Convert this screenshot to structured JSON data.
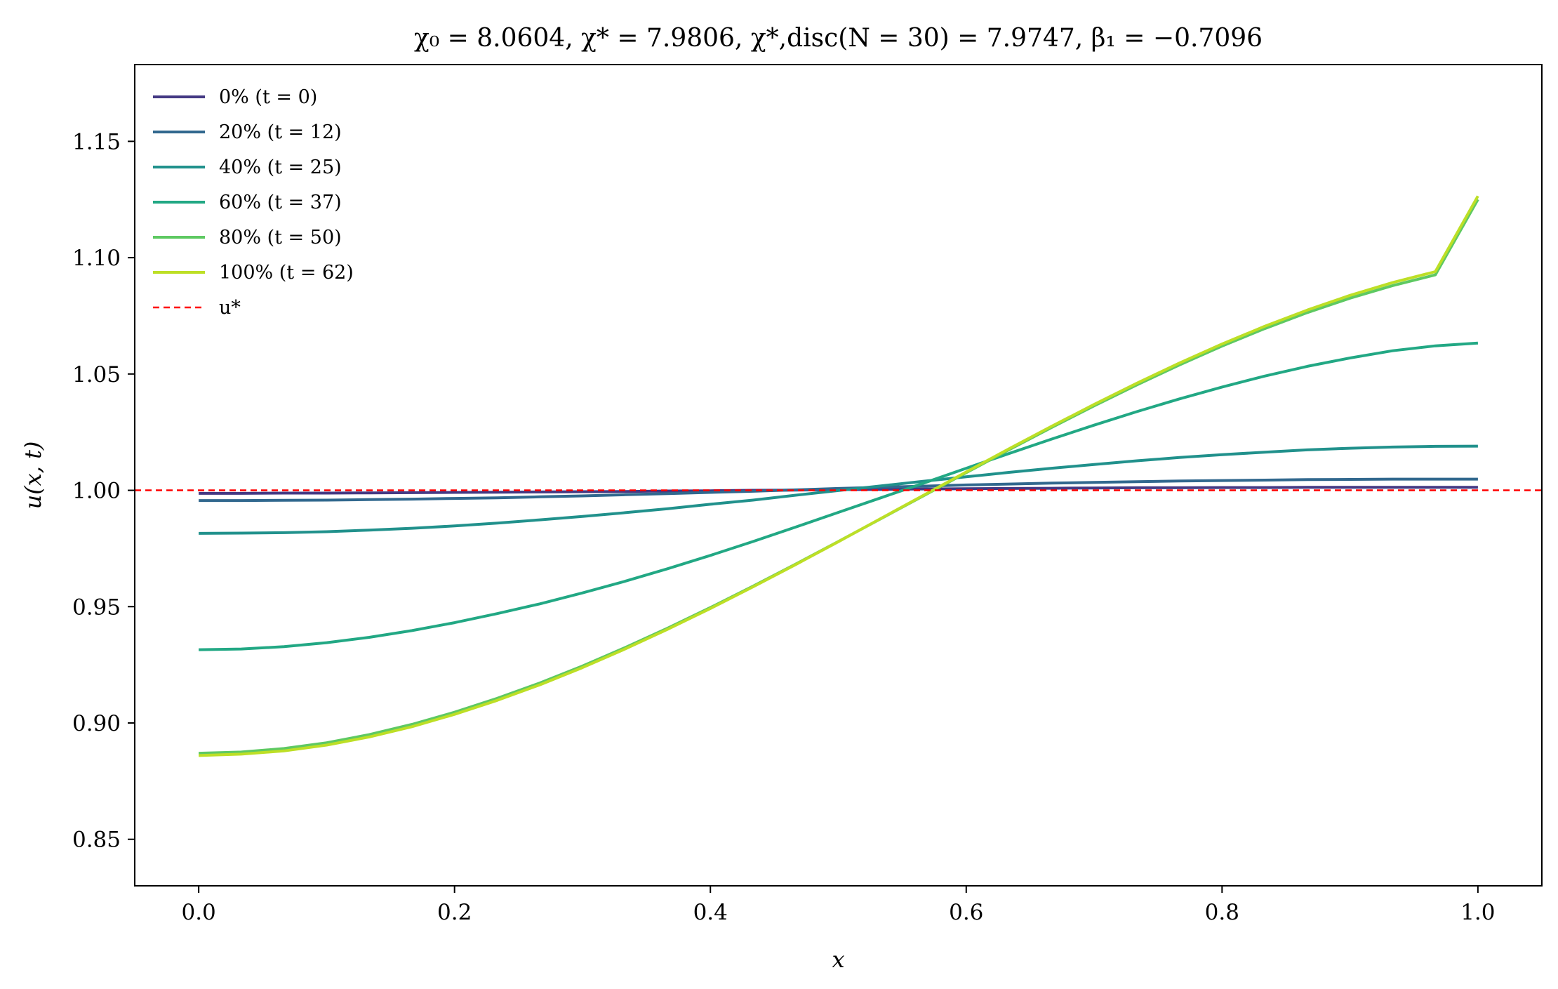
{
  "chart_data": {
    "type": "line",
    "title": "χ₀ = 8.0604,  χ* = 7.9806,  χ*,disc(N = 30) = 7.9747,  β₁ = −0.7096",
    "xlabel": "x",
    "ylabel": "u(x, t)",
    "xlim": [
      -0.05,
      1.05
    ],
    "ylim": [
      0.83,
      1.183
    ],
    "xticks": [
      0.0,
      0.2,
      0.4,
      0.6,
      0.8,
      1.0
    ],
    "xtick_labels": [
      "0.0",
      "0.2",
      "0.4",
      "0.6",
      "0.8",
      "1.0"
    ],
    "yticks": [
      0.85,
      0.9,
      0.95,
      1.0,
      1.05,
      1.1,
      1.15
    ],
    "ytick_labels": [
      "0.85",
      "0.90",
      "0.95",
      "1.00",
      "1.05",
      "1.10",
      "1.15"
    ],
    "grid": false,
    "legend_position": "top-left",
    "x": [
      0.0,
      0.0333,
      0.0667,
      0.1,
      0.1333,
      0.1667,
      0.2,
      0.2333,
      0.2667,
      0.3,
      0.3333,
      0.3667,
      0.4,
      0.4333,
      0.4667,
      0.5,
      0.5333,
      0.5667,
      0.6,
      0.6333,
      0.6667,
      0.7,
      0.7333,
      0.7667,
      0.8,
      0.8333,
      0.8667,
      0.9,
      0.9333,
      0.9667,
      1.0
    ],
    "series": [
      {
        "name": "0% (t = 0)",
        "color": "#443983",
        "values": [
          0.9987,
          0.9987,
          0.9988,
          0.9988,
          0.9989,
          0.999,
          0.9991,
          0.9992,
          0.9993,
          0.9994,
          0.9995,
          0.9997,
          0.9998,
          1.0,
          1.0001,
          1.0003,
          1.0004,
          1.0006,
          1.0007,
          1.0008,
          1.0009,
          1.001,
          1.0011,
          1.0011,
          1.0012,
          1.0012,
          1.0013,
          1.0013,
          1.0013,
          1.0013,
          1.0013
        ]
      },
      {
        "name": "20% (t = 12)",
        "color": "#31688e",
        "values": [
          0.9956,
          0.9956,
          0.9957,
          0.9958,
          0.996,
          0.9962,
          0.9965,
          0.9968,
          0.9972,
          0.9976,
          0.9981,
          0.9986,
          0.9991,
          0.9996,
          1.0002,
          1.0008,
          1.0013,
          1.0018,
          1.0023,
          1.0027,
          1.0031,
          1.0034,
          1.0037,
          1.004,
          1.0042,
          1.0044,
          1.0046,
          1.0047,
          1.0048,
          1.0048,
          1.0048
        ]
      },
      {
        "name": "40% (t = 25)",
        "color": "#21918c",
        "values": [
          0.9815,
          0.9816,
          0.9818,
          0.9822,
          0.9829,
          0.9837,
          0.9847,
          0.9859,
          0.9873,
          0.9888,
          0.9904,
          0.9921,
          0.994,
          0.9958,
          0.9979,
          0.9999,
          1.0019,
          1.0039,
          1.0058,
          1.0077,
          1.0095,
          1.0111,
          1.0127,
          1.0141,
          1.0153,
          1.0164,
          1.0174,
          1.0181,
          1.0186,
          1.0189,
          1.019
        ]
      },
      {
        "name": "60% (t = 37)",
        "color": "#22a884",
        "values": [
          0.9315,
          0.9318,
          0.9328,
          0.9345,
          0.9368,
          0.9397,
          0.9431,
          0.947,
          0.9512,
          0.9559,
          0.9609,
          0.9663,
          0.972,
          0.978,
          0.9842,
          0.9905,
          0.9968,
          1.0031,
          1.0095,
          1.0158,
          1.022,
          1.028,
          1.0338,
          1.0393,
          1.0444,
          1.0491,
          1.0533,
          1.0569,
          1.06,
          1.0621,
          1.0633
        ]
      },
      {
        "name": "80% (t = 50)",
        "color": "#5ec962",
        "values": [
          0.887,
          0.8875,
          0.889,
          0.8915,
          0.895,
          0.8994,
          0.9046,
          0.9106,
          0.9172,
          0.9245,
          0.9324,
          0.9408,
          0.9496,
          0.9588,
          0.9683,
          0.978,
          0.9878,
          0.9977,
          1.0076,
          1.0174,
          1.027,
          1.0363,
          1.0453,
          1.0539,
          1.062,
          1.0695,
          1.0764,
          1.0826,
          1.088,
          1.0926,
          1.125
        ]
      },
      {
        "name": "100% (t = 62)",
        "color": "#bddf26",
        "values": [
          0.886,
          0.8866,
          0.888,
          0.8905,
          0.894,
          0.8984,
          0.9037,
          0.9097,
          0.9164,
          0.9238,
          0.9318,
          0.9403,
          0.9492,
          0.9585,
          0.9681,
          0.9779,
          0.9879,
          0.9979,
          1.0079,
          1.0178,
          1.0275,
          1.0369,
          1.046,
          1.0547,
          1.0629,
          1.0705,
          1.0775,
          1.0838,
          1.0893,
          1.094,
          1.1265
        ]
      },
      {
        "name": "u*",
        "color": "#ff0000",
        "dashed": true,
        "constant": 1.0
      }
    ]
  }
}
